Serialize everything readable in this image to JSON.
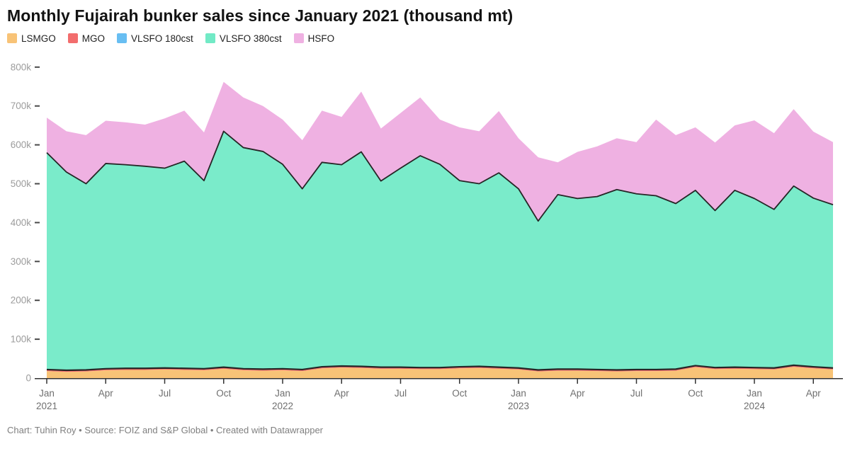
{
  "title": "Monthly Fujairah bunker sales since January 2021 (thousand mt)",
  "footer": {
    "text": "Chart: Tuhin Roy • Source: FOIZ and S&P Global • Created with Datawrapper"
  },
  "legend": [
    {
      "label": "LSMGO",
      "color": "#F8C377"
    },
    {
      "label": "MGO",
      "color": "#F26D6D"
    },
    {
      "label": "VLSFO 180cst",
      "color": "#68BEF2"
    },
    {
      "label": "VLSFO 380cst",
      "color": "#72EAC6"
    },
    {
      "label": "HSFO",
      "color": "#EFB1E2"
    }
  ],
  "chart_data": {
    "type": "area",
    "stacked": true,
    "title": "Monthly Fujairah bunker sales since January 2021 (thousand mt)",
    "unit": "thousand mt",
    "grid": false,
    "legend_position": "top",
    "ylim": [
      0,
      800
    ],
    "y_ticks": [
      "0",
      "100k",
      "200k",
      "300k",
      "400k",
      "500k",
      "600k",
      "700k",
      "800k"
    ],
    "x": [
      "Jan 2021",
      "Feb 2021",
      "Mar 2021",
      "Apr 2021",
      "May 2021",
      "Jun 2021",
      "Jul 2021",
      "Aug 2021",
      "Sep 2021",
      "Oct 2021",
      "Nov 2021",
      "Dec 2021",
      "Jan 2022",
      "Feb 2022",
      "Mar 2022",
      "Apr 2022",
      "May 2022",
      "Jun 2022",
      "Jul 2022",
      "Aug 2022",
      "Sep 2022",
      "Oct 2022",
      "Nov 2022",
      "Dec 2022",
      "Jan 2023",
      "Feb 2023",
      "Mar 2023",
      "Apr 2023",
      "May 2023",
      "Jun 2023",
      "Jul 2023",
      "Aug 2023",
      "Sep 2023",
      "Oct 2023",
      "Nov 2023",
      "Dec 2023",
      "Jan 2024",
      "Feb 2024",
      "Mar 2024",
      "Apr 2024",
      "May 2024"
    ],
    "x_ticks": [
      {
        "index": 0,
        "label": "Jan",
        "year": "2021"
      },
      {
        "index": 3,
        "label": "Apr"
      },
      {
        "index": 6,
        "label": "Jul"
      },
      {
        "index": 9,
        "label": "Oct"
      },
      {
        "index": 12,
        "label": "Jan",
        "year": "2022"
      },
      {
        "index": 15,
        "label": "Apr"
      },
      {
        "index": 18,
        "label": "Jul"
      },
      {
        "index": 21,
        "label": "Oct"
      },
      {
        "index": 24,
        "label": "Jan",
        "year": "2023"
      },
      {
        "index": 27,
        "label": "Apr"
      },
      {
        "index": 30,
        "label": "Jul"
      },
      {
        "index": 33,
        "label": "Oct"
      },
      {
        "index": 36,
        "label": "Jan",
        "year": "2024"
      },
      {
        "index": 39,
        "label": "Apr"
      }
    ],
    "series": [
      {
        "name": "LSMGO",
        "color": "#F8C377",
        "values": [
          18,
          16,
          17,
          20,
          21,
          21,
          22,
          21,
          20,
          24,
          20,
          19,
          20,
          18,
          25,
          27,
          26,
          24,
          24,
          23,
          23,
          25,
          26,
          24,
          22,
          17,
          19,
          19,
          18,
          17,
          18,
          18,
          19,
          28,
          23,
          24,
          23,
          22,
          29,
          25,
          22
        ]
      },
      {
        "name": "MGO",
        "color": "#F26D6D",
        "values": [
          3,
          3,
          3,
          3,
          3,
          3,
          3,
          3,
          3,
          3,
          3,
          3,
          3,
          3,
          3,
          3,
          3,
          3,
          3,
          3,
          3,
          3,
          3,
          3,
          3,
          3,
          3,
          3,
          3,
          3,
          3,
          3,
          3,
          3,
          3,
          3,
          3,
          3,
          3,
          3,
          3
        ]
      },
      {
        "name": "VLSFO 180cst",
        "color": "#68BEF2",
        "values": [
          1,
          1,
          1,
          1,
          1,
          1,
          1,
          1,
          1,
          1,
          1,
          1,
          1,
          1,
          1,
          1,
          1,
          1,
          1,
          1,
          1,
          1,
          1,
          1,
          1,
          1,
          1,
          1,
          1,
          1,
          1,
          1,
          1,
          1,
          1,
          1,
          1,
          1,
          1,
          1,
          1
        ]
      },
      {
        "name": "VLSFO 380cst",
        "color": "#7AEBCA",
        "values": [
          558,
          510,
          479,
          528,
          524,
          520,
          514,
          533,
          484,
          607,
          569,
          560,
          526,
          465,
          526,
          518,
          552,
          479,
          512,
          545,
          523,
          479,
          470,
          500,
          461,
          383,
          449,
          439,
          445,
          464,
          452,
          447,
          426,
          451,
          404,
          455,
          435,
          408,
          461,
          434,
          420
        ]
      },
      {
        "name": "HSFO",
        "color": "#EFB1E2",
        "values": [
          90,
          105,
          125,
          110,
          109,
          107,
          128,
          130,
          124,
          127,
          129,
          117,
          115,
          125,
          133,
          123,
          155,
          135,
          142,
          150,
          115,
          137,
          135,
          159,
          130,
          164,
          83,
          120,
          129,
          132,
          133,
          196,
          176,
          162,
          175,
          167,
          201,
          196,
          198,
          171,
          161
        ]
      }
    ],
    "stroke_color": "#262626",
    "axis_color": "#333333",
    "y_label_color": "#9c9c9c",
    "x_label_color": "#6f6f6f"
  }
}
